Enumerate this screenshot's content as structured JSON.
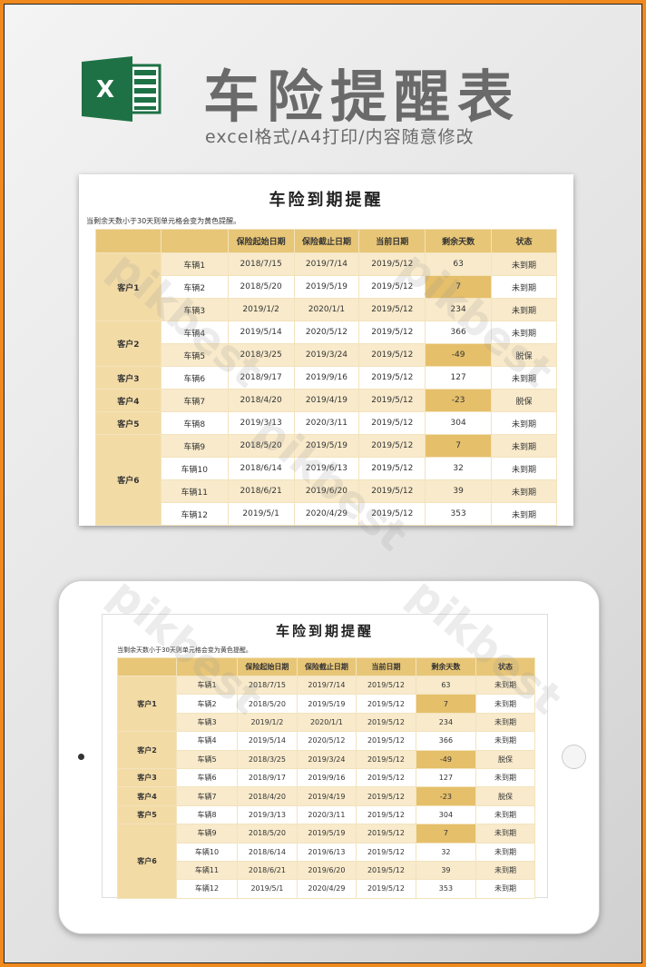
{
  "banner": {
    "title": "车险提醒表",
    "subtitle": "excel格式/A4打印/内容随意修改",
    "logo_text": "X"
  },
  "sheet": {
    "title": "车险到期提醒",
    "note": "当剩余天数小于30天则单元格会变为黄色提醒。",
    "headers": [
      "",
      "",
      "保险起始日期",
      "保险截止日期",
      "当前日期",
      "剩余天数",
      "状态"
    ],
    "groups": [
      {
        "client": "客户1",
        "rows": [
          [
            "车辆1",
            "2018/7/15",
            "2019/7/14",
            "2019/5/12",
            "63",
            "未到期"
          ],
          [
            "车辆2",
            "2018/5/20",
            "2019/5/19",
            "2019/5/12",
            "7",
            "未到期"
          ],
          [
            "车辆3",
            "2019/1/2",
            "2020/1/1",
            "2019/5/12",
            "234",
            "未到期"
          ]
        ]
      },
      {
        "client": "客户2",
        "rows": [
          [
            "车辆4",
            "2019/5/14",
            "2020/5/12",
            "2019/5/12",
            "366",
            "未到期"
          ],
          [
            "车辆5",
            "2018/3/25",
            "2019/3/24",
            "2019/5/12",
            "-49",
            "脱保"
          ]
        ]
      },
      {
        "client": "客户3",
        "rows": [
          [
            "车辆6",
            "2018/9/17",
            "2019/9/16",
            "2019/5/12",
            "127",
            "未到期"
          ]
        ]
      },
      {
        "client": "客户4",
        "rows": [
          [
            "车辆7",
            "2018/4/20",
            "2019/4/19",
            "2019/5/12",
            "-23",
            "脱保"
          ]
        ]
      },
      {
        "client": "客户5",
        "rows": [
          [
            "车辆8",
            "2019/3/13",
            "2020/3/11",
            "2019/5/12",
            "304",
            "未到期"
          ]
        ]
      },
      {
        "client": "客户6",
        "rows": [
          [
            "车辆9",
            "2018/5/20",
            "2019/5/19",
            "2019/5/12",
            "7",
            "未到期"
          ],
          [
            "车辆10",
            "2018/6/14",
            "2019/6/13",
            "2019/5/12",
            "32",
            "未到期"
          ],
          [
            "车辆11",
            "2018/6/21",
            "2019/6/20",
            "2019/5/12",
            "39",
            "未到期"
          ],
          [
            "车辆12",
            "2019/5/1",
            "2020/4/29",
            "2019/5/12",
            "353",
            "未到期"
          ]
        ]
      }
    ],
    "highlight_threshold_days": 30
  },
  "watermark": "pikbest",
  "colors": {
    "header": "#e8c677",
    "highlight": "#e5bf6a",
    "client": "#f3dba6",
    "alt_row": "#f8eacb",
    "excel_green": "#1e7145",
    "frame": "#f08a1e"
  }
}
